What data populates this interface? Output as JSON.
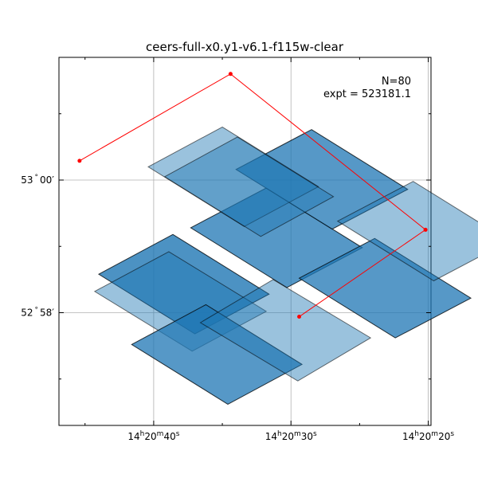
{
  "chart_data": {
    "type": "sky-footprint",
    "title": "ceers-full-x0.y1-v6.1-f115w-clear",
    "annotation": {
      "line1": "N=80",
      "line2": "expt = 523181.1"
    },
    "x_axis": {
      "ticks": [
        {
          "label": "14h20m40s",
          "parts": [
            "14",
            "h",
            "20",
            "m",
            "40",
            "s"
          ],
          "ra_sec": 40
        },
        {
          "label": "14h20m30s",
          "parts": [
            "14",
            "h",
            "20",
            "m",
            "30",
            "s"
          ],
          "ra_sec": 30
        },
        {
          "label": "14h20m20s",
          "parts": [
            "14",
            "h",
            "20",
            "m",
            "20",
            "s"
          ],
          "ra_sec": 20
        }
      ],
      "minor_ticks_ra_sec": [
        45,
        35,
        25
      ],
      "range_ra_sec": [
        46.9,
        19.8
      ]
    },
    "y_axis": {
      "ticks": [
        {
          "label": "53°00′",
          "parts": [
            "53",
            "°",
            "00",
            "′"
          ],
          "dec_arcmin": 0
        },
        {
          "label": "52°58′",
          "parts": [
            "52",
            "°",
            "58",
            "′"
          ],
          "dec_arcmin": -2
        }
      ],
      "minor_ticks_dec_arcmin": [
        1,
        -1,
        -3
      ],
      "range_dec_arcmin": [
        -3.7,
        1.85
      ]
    },
    "grid": true,
    "colors": {
      "footprint_fill": "#1f77b4",
      "footprint_edge": "#000000",
      "outline": "#ff0000"
    },
    "outline_path": [
      {
        "ra_sec": 45.4,
        "dec_arcmin": 0.29
      },
      {
        "ra_sec": 34.4,
        "dec_arcmin": 1.6
      },
      {
        "ra_sec": 20.2,
        "dec_arcmin": -0.75
      },
      {
        "ra_sec": 29.4,
        "dec_arcmin": -2.06
      }
    ],
    "footprints": [
      {
        "name": "nrcb-left-top",
        "corners": [
          [
            44.0,
            -1.42
          ],
          [
            38.6,
            -0.82
          ],
          [
            31.6,
            -1.72
          ],
          [
            37.0,
            -2.32
          ]
        ],
        "opacity": 0.55
      },
      {
        "name": "nrcb-left-top-d",
        "corners": [
          [
            44.0,
            -1.42
          ],
          [
            38.6,
            -0.82
          ],
          [
            31.6,
            -1.72
          ],
          [
            37.0,
            -2.32
          ]
        ],
        "opacity": 0.55
      },
      {
        "name": "nrcb-left-low",
        "corners": [
          [
            44.3,
            -1.68
          ],
          [
            38.9,
            -1.08
          ],
          [
            31.8,
            -1.98
          ],
          [
            37.2,
            -2.58
          ]
        ],
        "opacity": 0.45
      },
      {
        "name": "nrcb-left-bot",
        "corners": [
          [
            41.6,
            -2.48
          ],
          [
            36.2,
            -1.88
          ],
          [
            29.2,
            -2.78
          ],
          [
            34.6,
            -3.38
          ]
        ],
        "opacity": 0.45
      },
      {
        "name": "nrcb-left-bot-d",
        "corners": [
          [
            41.6,
            -2.48
          ],
          [
            36.2,
            -1.88
          ],
          [
            29.2,
            -2.78
          ],
          [
            34.6,
            -3.38
          ]
        ],
        "opacity": 0.55
      },
      {
        "name": "nrcb-left-bot2",
        "corners": [
          [
            36.6,
            -2.15
          ],
          [
            31.3,
            -1.5
          ],
          [
            24.2,
            -2.38
          ],
          [
            29.5,
            -3.03
          ]
        ],
        "opacity": 0.45
      },
      {
        "name": "nrca-upper-a",
        "corners": [
          [
            37.3,
            -0.72
          ],
          [
            31.8,
            -0.12
          ],
          [
            24.8,
            -1.02
          ],
          [
            30.3,
            -1.62
          ]
        ],
        "opacity": 0.45
      },
      {
        "name": "nrca-upper-a-d",
        "corners": [
          [
            37.3,
            -0.72
          ],
          [
            31.8,
            -0.12
          ],
          [
            24.8,
            -1.02
          ],
          [
            30.3,
            -1.62
          ]
        ],
        "opacity": 0.55
      },
      {
        "name": "nrca-upper-b",
        "corners": [
          [
            34.0,
            0.16
          ],
          [
            28.5,
            0.76
          ],
          [
            21.5,
            -0.14
          ],
          [
            27.0,
            -0.74
          ]
        ],
        "opacity": 0.45
      },
      {
        "name": "nrca-upper-b-d",
        "corners": [
          [
            34.0,
            0.16
          ],
          [
            28.5,
            0.76
          ],
          [
            21.5,
            -0.14
          ],
          [
            27.0,
            -0.74
          ]
        ],
        "opacity": 0.55
      },
      {
        "name": "nrca-right-a",
        "corners": [
          [
            29.4,
            -1.48
          ],
          [
            23.9,
            -0.88
          ],
          [
            16.9,
            -1.78
          ],
          [
            22.4,
            -2.38
          ]
        ],
        "opacity": 0.45
      },
      {
        "name": "nrca-right-a-d",
        "corners": [
          [
            29.4,
            -1.48
          ],
          [
            23.9,
            -0.88
          ],
          [
            16.9,
            -1.78
          ],
          [
            22.4,
            -2.38
          ]
        ],
        "opacity": 0.55
      },
      {
        "name": "nrca-right-b",
        "corners": [
          [
            26.6,
            -0.62
          ],
          [
            21.1,
            -0.02
          ],
          [
            14.1,
            -0.92
          ],
          [
            19.6,
            -1.52
          ]
        ],
        "opacity": 0.45
      },
      {
        "name": "nrca-upper-left",
        "corners": [
          [
            40.4,
            0.2
          ],
          [
            35.0,
            0.8
          ],
          [
            28.0,
            -0.1
          ],
          [
            33.4,
            -0.7
          ]
        ],
        "opacity": 0.45
      },
      {
        "name": "nrca-upper-left-d",
        "corners": [
          [
            39.2,
            0.05
          ],
          [
            33.9,
            0.65
          ],
          [
            26.9,
            -0.25
          ],
          [
            32.2,
            -0.85
          ]
        ],
        "opacity": 0.45
      }
    ],
    "footprint_edges_hint": "darker overlapping stripes"
  }
}
